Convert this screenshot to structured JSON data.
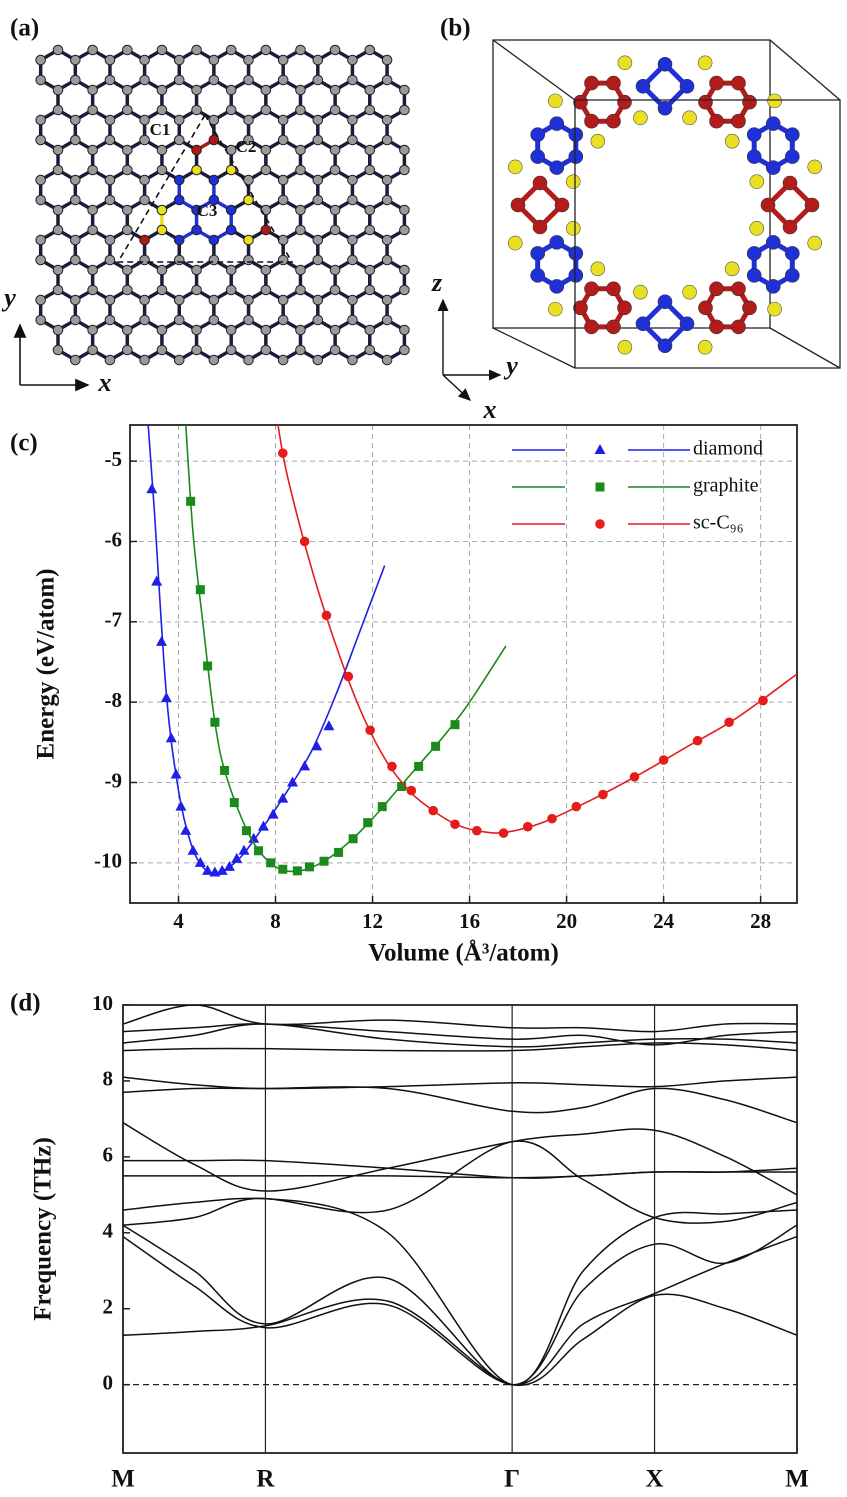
{
  "panel_a": {
    "label": "(a)",
    "sites": [
      "C1",
      "C2",
      "C3"
    ],
    "axes": [
      "x",
      "y"
    ]
  },
  "panel_b": {
    "label": "(b)",
    "axes": [
      "z",
      "y",
      "x"
    ]
  },
  "chart_data": [
    {
      "type": "line",
      "panel_label": "(c)",
      "x_label": "Volume (Å³/atom)",
      "y_label": "Energy (eV/atom)",
      "xlim": [
        2,
        29.5
      ],
      "ylim": [
        -10.5,
        -4.55
      ],
      "xticks": [
        4,
        8,
        12,
        16,
        20,
        24,
        28
      ],
      "yticks": [
        -10,
        -9,
        -8,
        -7,
        -6,
        -5
      ],
      "grid": true,
      "legend": "top-right",
      "series": [
        {
          "name": "diamond",
          "color": "#1f1fe6",
          "marker": "triangle",
          "x": [
            2.9,
            3.1,
            3.3,
            3.5,
            3.7,
            3.9,
            4.1,
            4.3,
            4.6,
            4.9,
            5.2,
            5.5,
            5.8,
            6.1,
            6.4,
            6.7,
            7.1,
            7.5,
            7.9,
            8.3,
            8.7,
            9.2,
            9.7,
            10.2
          ],
          "values": [
            -5.35,
            -6.5,
            -7.25,
            -7.95,
            -8.45,
            -8.9,
            -9.3,
            -9.6,
            -9.85,
            -10.0,
            -10.1,
            -10.12,
            -10.1,
            -10.05,
            -9.95,
            -9.85,
            -9.7,
            -9.55,
            -9.4,
            -9.2,
            -9.0,
            -8.8,
            -8.55,
            -8.3
          ],
          "curve_x": [
            2.75,
            3.0,
            3.5,
            4.0,
            4.5,
            5.0,
            5.6,
            6.5,
            7.5,
            8.5,
            9.5,
            10.5,
            11.5,
            12.5
          ],
          "curve_values": [
            -4.55,
            -5.6,
            -7.9,
            -9.1,
            -9.75,
            -10.05,
            -10.12,
            -9.95,
            -9.55,
            -9.1,
            -8.6,
            -7.9,
            -7.1,
            -6.3
          ]
        },
        {
          "name": "graphite",
          "color": "#1a8a1a",
          "marker": "square",
          "x": [
            4.5,
            4.9,
            5.2,
            5.5,
            5.9,
            6.3,
            6.8,
            7.3,
            7.8,
            8.3,
            8.9,
            9.4,
            10.0,
            10.6,
            11.2,
            11.8,
            12.4,
            13.2,
            13.9,
            14.6,
            15.4
          ],
          "values": [
            -5.5,
            -6.6,
            -7.55,
            -8.25,
            -8.85,
            -9.25,
            -9.6,
            -9.85,
            -10.0,
            -10.08,
            -10.1,
            -10.05,
            -9.98,
            -9.87,
            -9.7,
            -9.5,
            -9.3,
            -9.05,
            -8.8,
            -8.55,
            -8.28
          ],
          "curve_x": [
            4.3,
            4.6,
            5.0,
            5.5,
            6.0,
            7.0,
            8.0,
            9.0,
            10.0,
            11.0,
            12.0,
            13.0,
            14.0,
            15.0,
            16.0,
            17.5
          ],
          "curve_values": [
            -4.55,
            -5.9,
            -7.0,
            -8.25,
            -8.95,
            -9.7,
            -10.05,
            -10.1,
            -9.98,
            -9.75,
            -9.45,
            -9.1,
            -8.75,
            -8.4,
            -8.0,
            -7.3
          ]
        },
        {
          "name": "sc-C₉₆",
          "color": "#e61c1c",
          "marker": "circle",
          "x": [
            8.3,
            9.2,
            10.1,
            11.0,
            11.9,
            12.8,
            13.6,
            14.5,
            15.4,
            16.3,
            17.4,
            18.4,
            19.4,
            20.4,
            21.5,
            22.8,
            24.0,
            25.4,
            26.7,
            28.1
          ],
          "values": [
            -4.9,
            -6.0,
            -6.92,
            -7.68,
            -8.35,
            -8.8,
            -9.1,
            -9.35,
            -9.52,
            -9.6,
            -9.63,
            -9.55,
            -9.45,
            -9.3,
            -9.15,
            -8.93,
            -8.72,
            -8.48,
            -8.25,
            -7.98
          ],
          "curve_x": [
            8.1,
            8.5,
            9.5,
            10.5,
            11.5,
            12.5,
            13.5,
            14.5,
            15.5,
            16.5,
            17.5,
            19.0,
            21.0,
            23.0,
            25.0,
            27.0,
            29.5
          ],
          "curve_values": [
            -4.55,
            -5.2,
            -6.35,
            -7.3,
            -8.1,
            -8.7,
            -9.1,
            -9.35,
            -9.53,
            -9.61,
            -9.62,
            -9.5,
            -9.22,
            -8.9,
            -8.55,
            -8.2,
            -7.65
          ]
        }
      ]
    },
    {
      "type": "bands",
      "panel_label": "(d)",
      "y_label": "Frequency (THz)",
      "color": "#111111",
      "xlim": [
        0,
        2.366
      ],
      "ylim": [
        -1.8,
        10
      ],
      "xticks": [
        {
          "value": 0,
          "label": "M"
        },
        {
          "value": 0.5,
          "label": "R"
        },
        {
          "value": 1.366,
          "label": "Γ"
        },
        {
          "value": 1.866,
          "label": "X"
        },
        {
          "value": 2.366,
          "label": "M"
        }
      ],
      "yticks": [
        0,
        2,
        4,
        6,
        8,
        10
      ],
      "x": [
        0,
        0.25,
        0.5,
        0.93,
        1.366,
        1.616,
        1.866,
        2.116,
        2.366
      ],
      "bands": [
        [
          1.3,
          1.4,
          1.55,
          2.2,
          0,
          1.2,
          2.35,
          2.0,
          1.3
        ],
        [
          3.9,
          2.6,
          1.5,
          2.1,
          0,
          1.6,
          2.4,
          3.2,
          3.9
        ],
        [
          4.2,
          3.0,
          1.6,
          2.8,
          0,
          2.5,
          3.7,
          3.2,
          4.2
        ],
        [
          4.2,
          4.4,
          4.9,
          4.0,
          0,
          3.0,
          4.4,
          4.5,
          4.6
        ],
        [
          4.6,
          4.8,
          4.9,
          4.6,
          6.4,
          5.4,
          4.4,
          4.3,
          4.8
        ],
        [
          5.5,
          5.5,
          5.5,
          5.5,
          5.45,
          5.5,
          5.6,
          5.6,
          5.6
        ],
        [
          5.9,
          5.9,
          5.9,
          5.7,
          5.45,
          5.5,
          5.6,
          5.6,
          5.7
        ],
        [
          6.9,
          5.8,
          5.1,
          5.7,
          6.4,
          6.6,
          6.7,
          6.0,
          5.0
        ],
        [
          7.7,
          7.8,
          7.8,
          7.8,
          7.2,
          7.3,
          7.8,
          7.5,
          6.9
        ],
        [
          8.1,
          7.9,
          7.8,
          7.85,
          7.95,
          7.9,
          7.85,
          8.0,
          8.1
        ],
        [
          8.8,
          8.85,
          8.85,
          8.8,
          8.8,
          8.9,
          9.0,
          8.95,
          8.8
        ],
        [
          9.0,
          9.2,
          9.5,
          9.1,
          8.9,
          9.0,
          9.1,
          9.1,
          9.0
        ],
        [
          9.3,
          9.4,
          9.5,
          9.3,
          9.1,
          9.2,
          8.95,
          9.2,
          9.3
        ],
        [
          9.5,
          10.0,
          9.5,
          9.6,
          9.4,
          9.4,
          9.3,
          9.5,
          9.5
        ]
      ]
    }
  ]
}
